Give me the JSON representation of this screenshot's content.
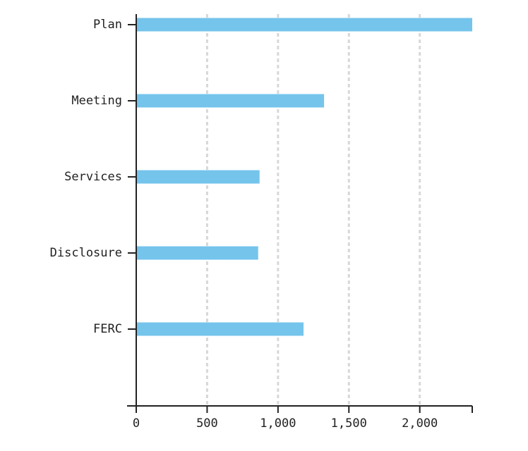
{
  "chart_data": {
    "type": "bar",
    "orientation": "horizontal",
    "title": "",
    "xlabel": "",
    "ylabel": "",
    "categories": [
      "Plan",
      "Meeting",
      "Services",
      "Disclosure",
      "FERC"
    ],
    "values": [
      2370,
      1325,
      870,
      860,
      1180
    ],
    "xlim": [
      0,
      2370
    ],
    "x_ticks": [
      0,
      500,
      1000,
      1500,
      2000
    ],
    "x_tick_labels": [
      "0",
      "500",
      "1,000",
      "1,500",
      "2,000"
    ],
    "grid": "vertical dashed",
    "bar_color": "#75c4ec",
    "grid_color": "#d8d8d8",
    "axis_color": "#222222"
  }
}
